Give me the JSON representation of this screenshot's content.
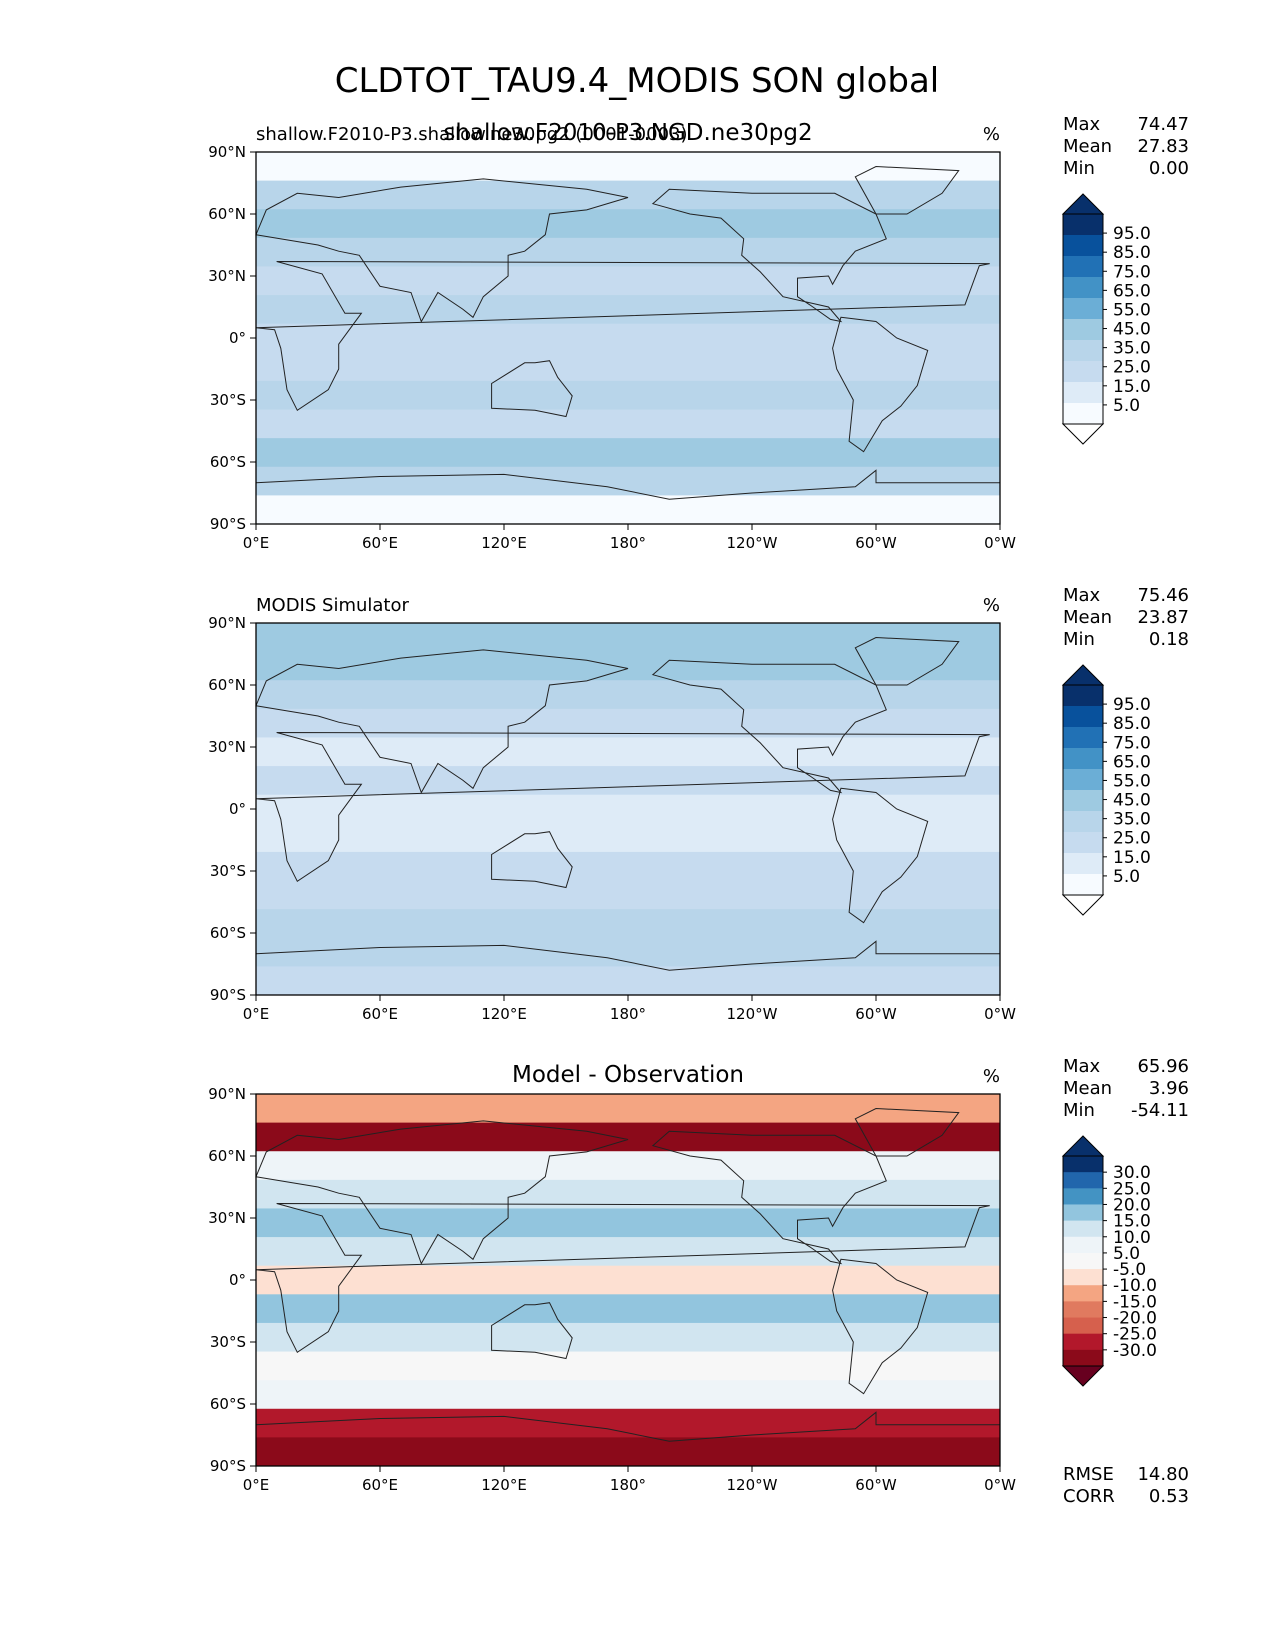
{
  "figure_title": "CLDTOT_TAU9.4_MODIS SON global",
  "chart_data": [
    {
      "type": "heatmap",
      "name": "model",
      "subtitle": "shallow.F2010-P3.NGD.ne30pg2",
      "left_label": "shallow.F2010-P3.shallow.ne30pg2 (0001-0003)",
      "units": "%",
      "stats": [
        {
          "label": "Max",
          "value": "74.47"
        },
        {
          "label": "Mean",
          "value": "27.83"
        },
        {
          "label": "Min",
          "value": "0.00"
        }
      ],
      "xticks": [
        "0°E",
        "60°E",
        "120°E",
        "180°",
        "120°W",
        "60°W",
        "0°W"
      ],
      "yticks": [
        "90°N",
        "60°N",
        "30°N",
        "0°",
        "30°S",
        "60°S",
        "90°S"
      ],
      "colorbar": {
        "labels": [
          "95.0",
          "85.0",
          "75.0",
          "65.0",
          "55.0",
          "45.0",
          "35.0",
          "25.0",
          "15.0",
          "5.0"
        ],
        "colors": [
          "#08306b",
          "#08519c",
          "#2171b5",
          "#4292c6",
          "#6baed6",
          "#9ecae1",
          "#b8d5ea",
          "#c6dbef",
          "#deebf7",
          "#f7fbff"
        ],
        "over": "#08306b",
        "under": "#ffffff"
      },
      "zonal_band_values": [
        5,
        40,
        50,
        40,
        25,
        35,
        30,
        25,
        35,
        30,
        45,
        40,
        5
      ]
    },
    {
      "type": "heatmap",
      "name": "obs",
      "subtitle": "",
      "left_label": "MODIS Simulator",
      "units": "%",
      "stats": [
        {
          "label": "Max",
          "value": "75.46"
        },
        {
          "label": "Mean",
          "value": "23.87"
        },
        {
          "label": "Min",
          "value": "0.18"
        }
      ],
      "xticks": [
        "0°E",
        "60°E",
        "120°E",
        "180°",
        "120°W",
        "60°W",
        "0°W"
      ],
      "yticks": [
        "90°N",
        "60°N",
        "30°N",
        "0°",
        "30°S",
        "60°S",
        "90°S"
      ],
      "colorbar": {
        "labels": [
          "95.0",
          "85.0",
          "75.0",
          "65.0",
          "55.0",
          "45.0",
          "35.0",
          "25.0",
          "15.0",
          "5.0"
        ],
        "colors": [
          "#08306b",
          "#08519c",
          "#2171b5",
          "#4292c6",
          "#6baed6",
          "#9ecae1",
          "#b8d5ea",
          "#c6dbef",
          "#deebf7",
          "#f7fbff"
        ],
        "over": "#08306b",
        "under": "#ffffff"
      },
      "zonal_band_values": [
        45,
        45,
        40,
        30,
        20,
        25,
        20,
        15,
        25,
        30,
        40,
        35,
        30
      ]
    },
    {
      "type": "heatmap",
      "name": "diff",
      "subtitle": "Model - Observation",
      "left_label": "",
      "units": "%",
      "stats": [
        {
          "label": "Max",
          "value": "65.96"
        },
        {
          "label": "Mean",
          "value": "3.96"
        },
        {
          "label": "Min",
          "value": "-54.11"
        }
      ],
      "xticks": [
        "0°E",
        "60°E",
        "120°E",
        "180°",
        "120°W",
        "60°W",
        "0°W"
      ],
      "yticks": [
        "90°N",
        "60°N",
        "30°N",
        "0°",
        "30°S",
        "60°S",
        "90°S"
      ],
      "colorbar": {
        "labels": [
          "30.0",
          "25.0",
          "20.0",
          "15.0",
          "10.0",
          "5.0",
          "-5.0",
          "-10.0",
          "-15.0",
          "-20.0",
          "-25.0",
          "-30.0"
        ],
        "colors": [
          "#08306b",
          "#2166ac",
          "#4393c3",
          "#92c5de",
          "#d1e5f0",
          "#eef4f8",
          "#f7f7f7",
          "#fde0d2",
          "#f4a582",
          "#e07a5f",
          "#d6604d",
          "#b2182b",
          "#8b0a1a"
        ],
        "over": "#08306b",
        "under": "#67001f"
      },
      "zonal_band_values": [
        -10,
        -30,
        5,
        10,
        15,
        10,
        -5,
        15,
        10,
        0,
        5,
        -25,
        -35
      ],
      "footer": [
        {
          "label": "RMSE",
          "value": "14.80"
        },
        {
          "label": "CORR",
          "value": "0.53"
        }
      ]
    }
  ]
}
